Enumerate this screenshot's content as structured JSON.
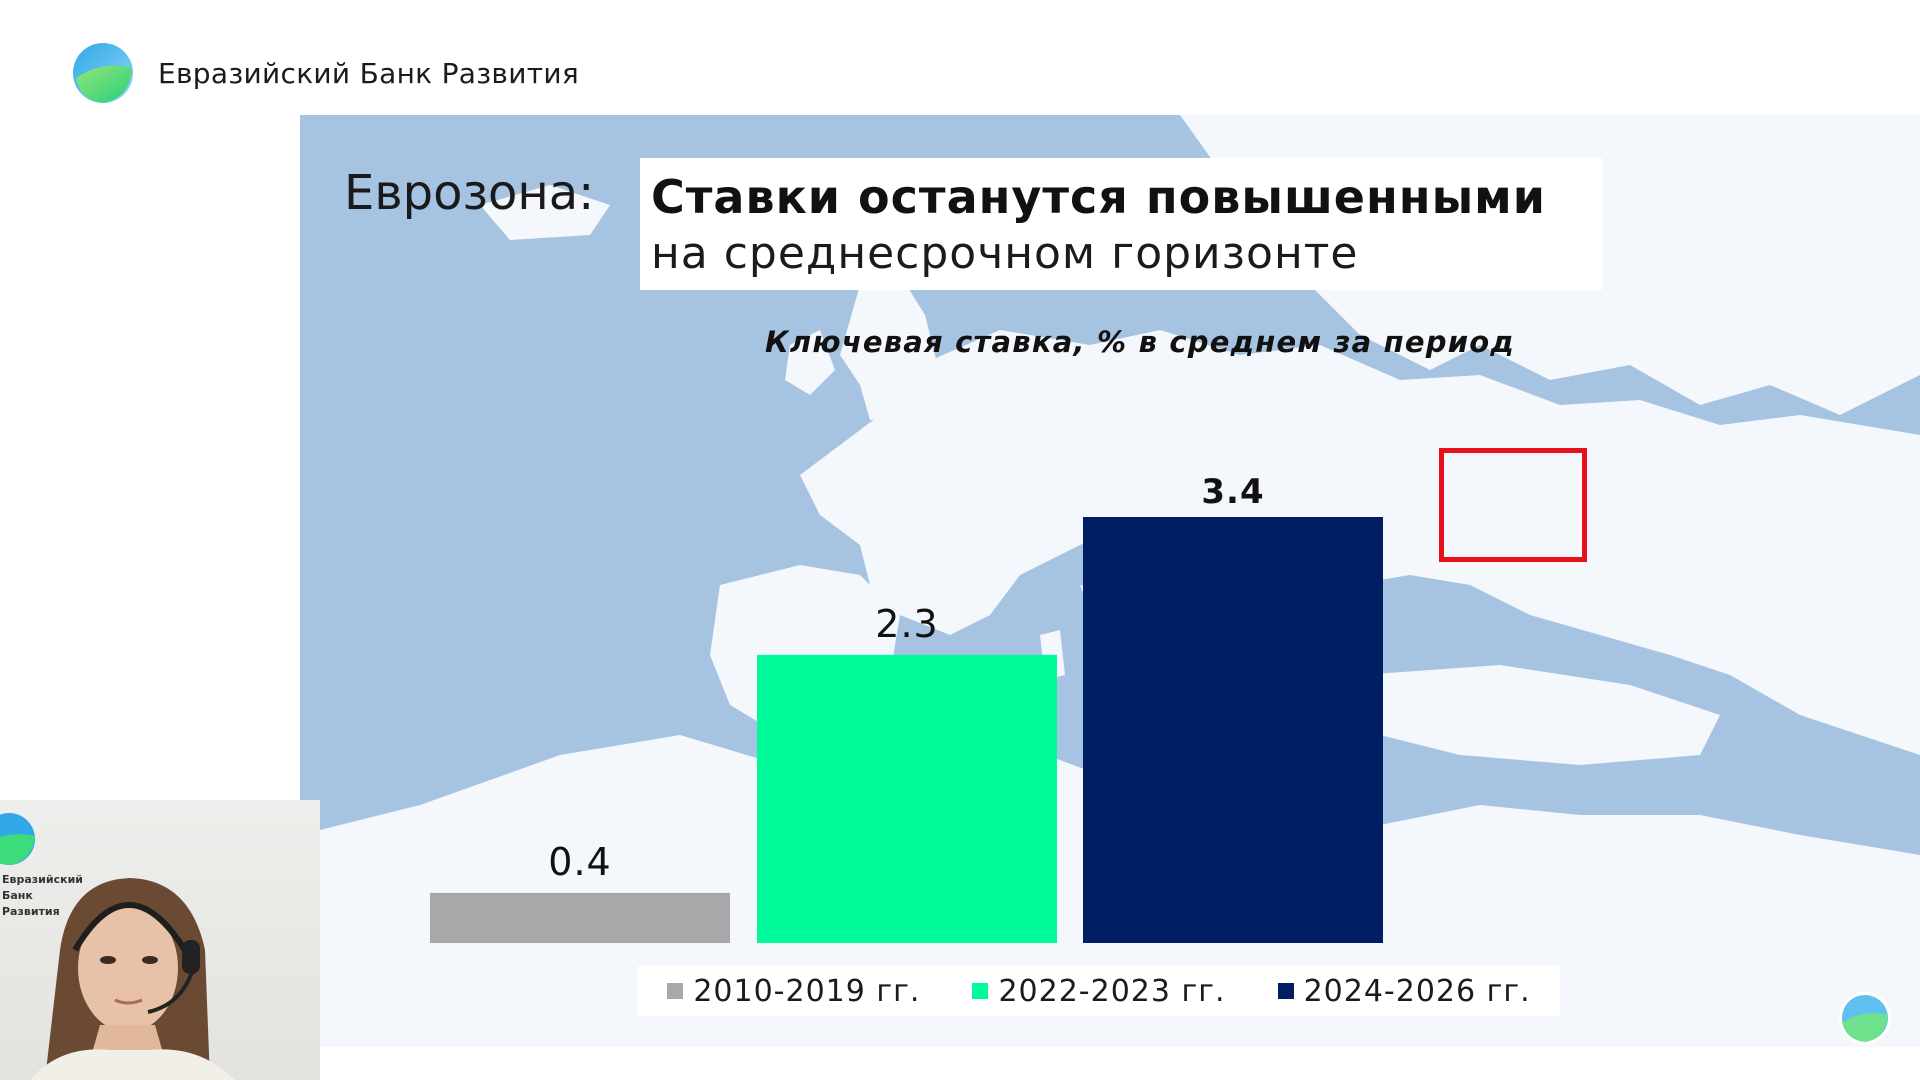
{
  "header": {
    "brand_name": "Евразийский Банк Развития"
  },
  "slide": {
    "title_prefix": "Еврозона:",
    "title_main": "Ставки останутся повышенными",
    "title_sub": "на среднесрочном горизонте"
  },
  "chart_data": {
    "type": "bar",
    "title": "Ключевая ставка, % в среднем за период",
    "categories": [
      "2010-2019 гг.",
      "2022-2023 гг.",
      "2024-2026 гг."
    ],
    "values": [
      0.4,
      2.3,
      3.4
    ],
    "value_labels": [
      "0.4",
      "2.3",
      "3.4"
    ],
    "colors": [
      "#a8a8ab",
      "#00fb9a",
      "#001e63"
    ],
    "highlighted_category": "2024-2026 гг.",
    "highlight_color": "#e8101a",
    "ylim": [
      0,
      3.4
    ],
    "legend_position": "bottom",
    "grid": false
  },
  "webcam": {
    "brand_text": "Евразийский Банк Развития"
  },
  "colors": {
    "brand_blue": "#2fa7e8",
    "brand_green": "#3ddc7a",
    "map_sea": "#a6c3e2",
    "map_land": "#f4f7fb"
  }
}
